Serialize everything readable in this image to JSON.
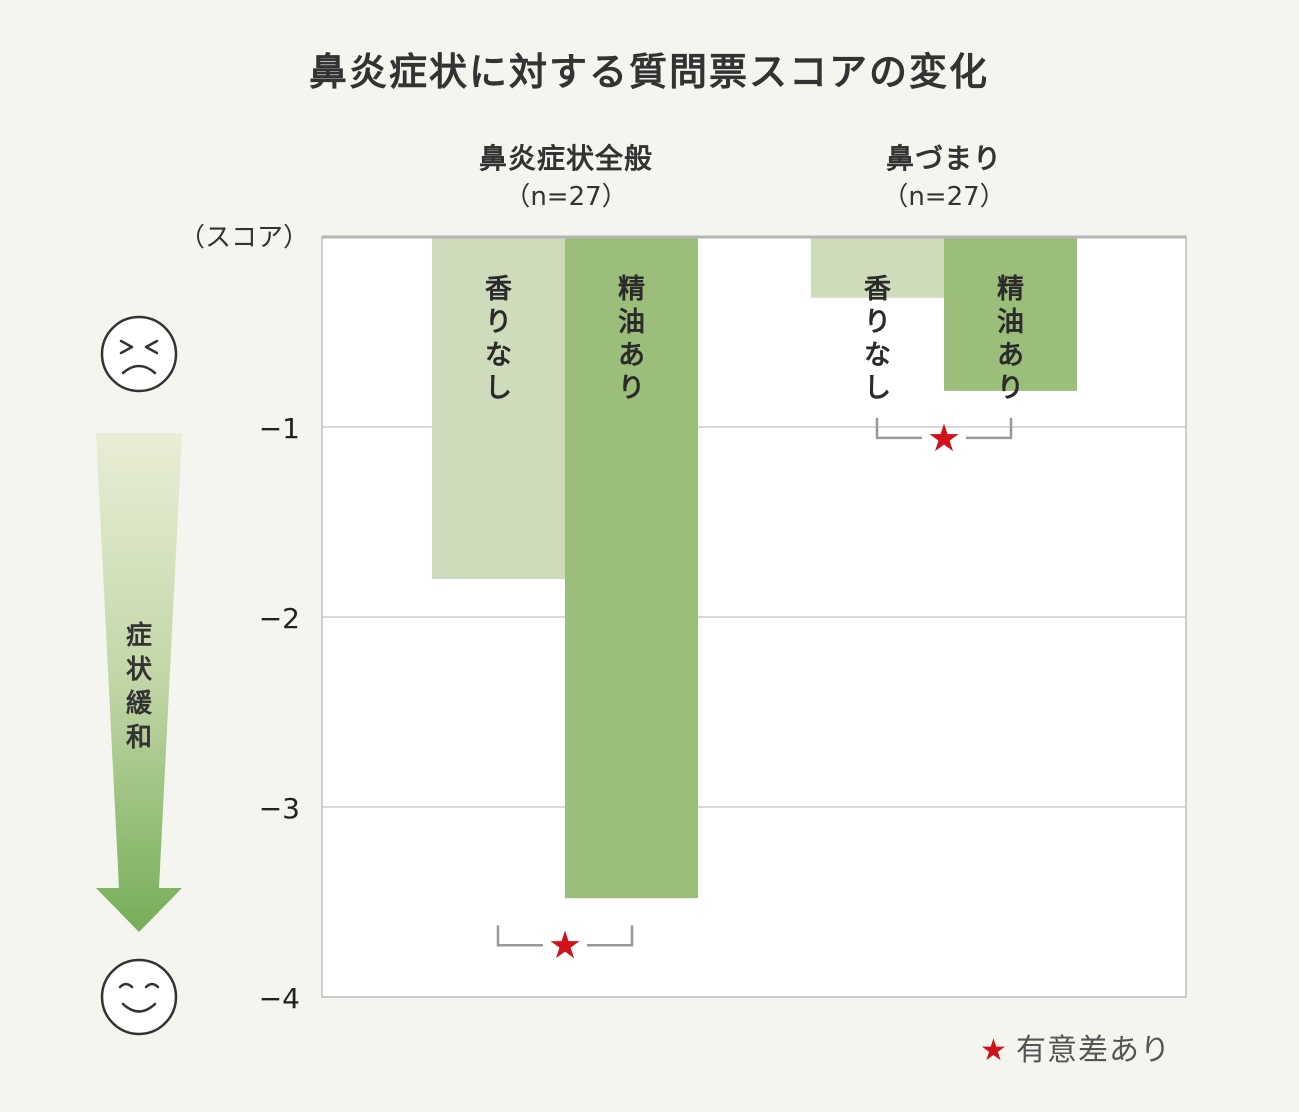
{
  "chart_data": {
    "type": "bar",
    "title": "鼻炎症状に対する質問票スコアの変化",
    "ylabel": "（スコア）",
    "ylim": [
      -4,
      0
    ],
    "yticks": [
      {
        "value": -1,
        "label": "−1"
      },
      {
        "value": -2,
        "label": "−2"
      },
      {
        "value": -3,
        "label": "−3"
      },
      {
        "value": -4,
        "label": "−4"
      }
    ],
    "grid": true,
    "groups": [
      {
        "name": "鼻炎症状全般",
        "n_label": "（n=27）",
        "significant": true
      },
      {
        "name": "鼻づまり",
        "n_label": "（n=27）",
        "significant": true
      }
    ],
    "series": [
      {
        "name": "香りなし",
        "color": "#cfdcbc",
        "values": [
          -1.8,
          -0.32
        ]
      },
      {
        "name": "精油あり",
        "color": "#9bbf7a",
        "values": [
          -3.48,
          -0.81
        ]
      }
    ],
    "arrow_label": "症状緩和",
    "legend_text": "有意差あり",
    "star_symbol": "★",
    "accent_color": "#d0121b"
  }
}
